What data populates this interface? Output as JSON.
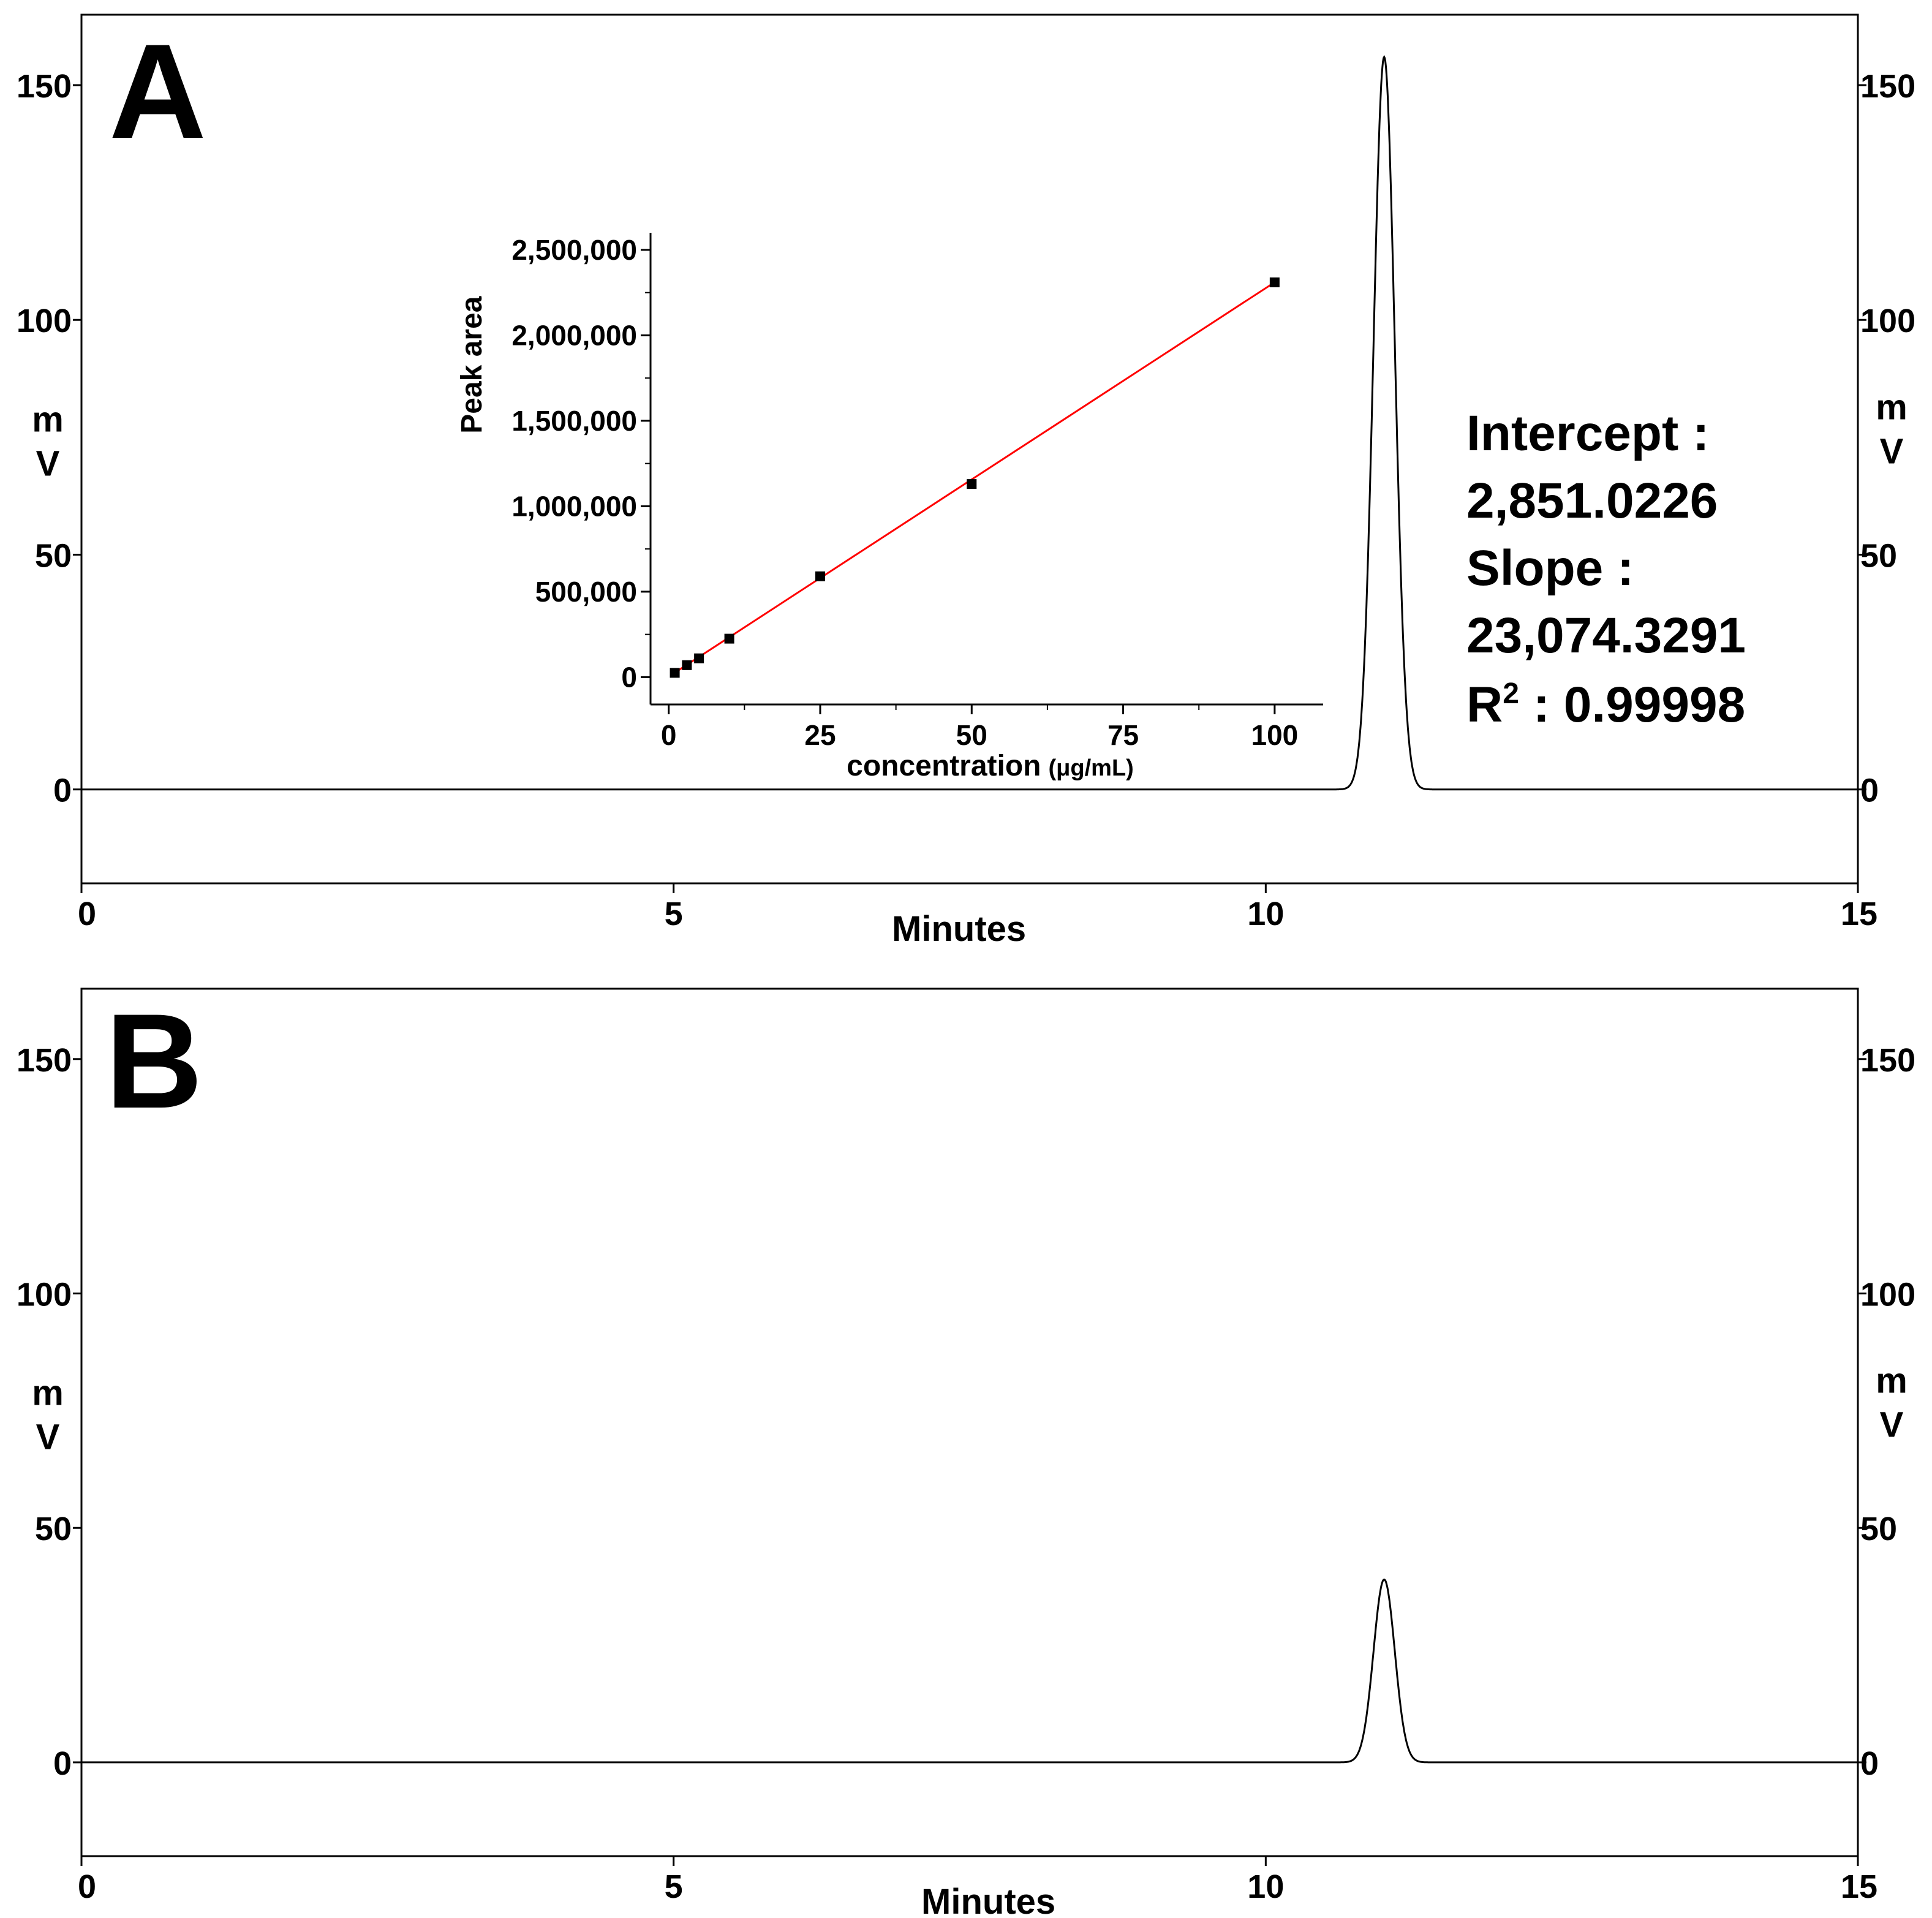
{
  "chart_data": [
    {
      "type": "line",
      "panel_label": "A",
      "xlabel": "Minutes",
      "ylabel_left": [
        "m",
        "V"
      ],
      "ylabel_right": [
        "m",
        "V"
      ],
      "xlim": [
        0,
        15
      ],
      "ylim": [
        -20,
        165
      ],
      "x_ticks": [
        0,
        5,
        10,
        15
      ],
      "y_ticks": [
        0,
        50,
        100,
        150
      ],
      "series": [
        {
          "name": "chromatogram",
          "baseline": 0,
          "peaks": [
            {
              "rt": 11.0,
              "height": 156,
              "sigma": 0.09
            }
          ]
        }
      ],
      "annotations": {
        "intercept_label": "Intercept :",
        "intercept_value": "2,851.0226",
        "slope_label": "Slope :",
        "slope_value": "23,074.3291",
        "r2_base": "R",
        "r2_sup": "2",
        "r2_value": " : 0.99998"
      },
      "inset": {
        "type": "scatter",
        "xlabel": "concentration",
        "xlabel_unit": "(μg/mL)",
        "ylabel": "Peak area",
        "xlim": [
          -3,
          108
        ],
        "ylim": [
          -160000,
          2600000
        ],
        "x_ticks": [
          0,
          25,
          50,
          75,
          100
        ],
        "x_tick_labels": [
          "0",
          "25",
          "50",
          "75",
          "100"
        ],
        "y_ticks": [
          0,
          500000,
          1000000,
          1500000,
          2000000,
          2500000
        ],
        "y_tick_labels": [
          "0",
          "500,000",
          "1,000,000",
          "1,500,000",
          "2,000,000",
          "2,500,000"
        ],
        "points": {
          "x": [
            1,
            3,
            5,
            10,
            25,
            50,
            100
          ],
          "y": [
            25000,
            70000,
            110000,
            225000,
            590000,
            1130000,
            2310000
          ]
        },
        "fit": {
          "intercept": 2851.0226,
          "slope": 23074.3291,
          "x_range": [
            1,
            100
          ],
          "color": "#ff0000"
        }
      }
    },
    {
      "type": "line",
      "panel_label": "B",
      "xlabel": "Minutes",
      "ylabel_left": [
        "m",
        "V"
      ],
      "ylabel_right": [
        "m",
        "V"
      ],
      "xlim": [
        0,
        15
      ],
      "ylim": [
        -20,
        165
      ],
      "x_ticks": [
        0,
        5,
        10,
        15
      ],
      "y_ticks": [
        0,
        50,
        100,
        150
      ],
      "series": [
        {
          "name": "chromatogram",
          "baseline": 0,
          "peaks": [
            {
              "rt": 11.0,
              "height": 39,
              "sigma": 0.09
            }
          ]
        }
      ]
    }
  ]
}
